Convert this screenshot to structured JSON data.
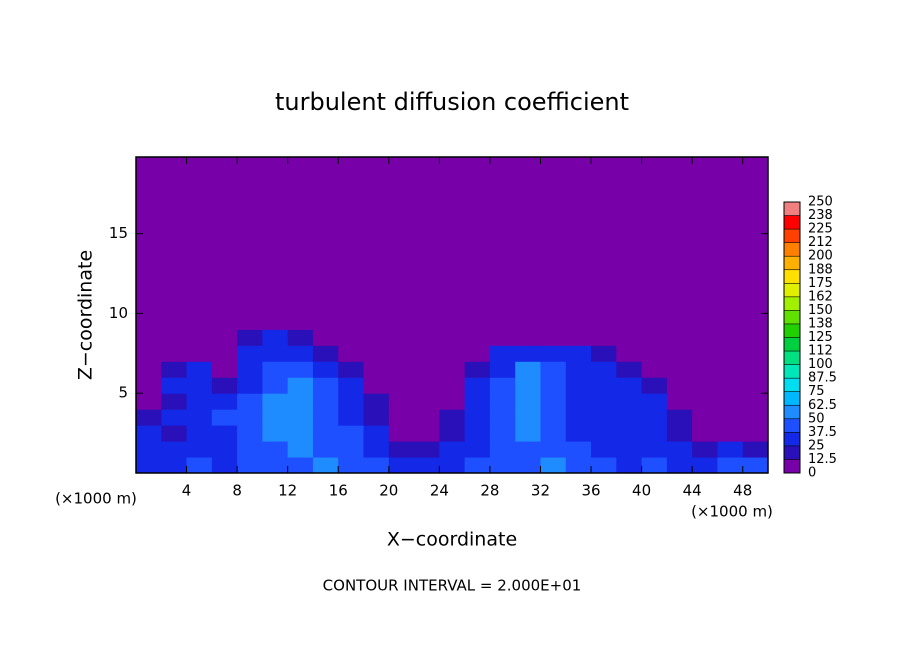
{
  "chart_data": {
    "type": "heatmap",
    "title": "turbulent diffusion coefficient",
    "x_label": "X−coordinate",
    "y_label": "Z−coordinate",
    "x_unit": "(×1000 m)",
    "y_unit": "(×1000 m)",
    "note": "CONTOUR INTERVAL = 2.000E+01",
    "xlim": [
      0,
      50
    ],
    "ylim": [
      0,
      19.8
    ],
    "xticks": [
      4,
      8,
      12,
      16,
      20,
      24,
      28,
      32,
      36,
      40,
      44,
      48
    ],
    "yticks": [
      5,
      10,
      15
    ],
    "x": [
      1,
      3,
      5,
      7,
      9,
      11,
      13,
      15,
      17,
      19,
      21,
      23,
      25,
      27,
      29,
      31,
      33,
      35,
      37,
      39,
      41,
      43,
      45,
      47,
      49
    ],
    "y": [
      0.5,
      1.5,
      2.5,
      3.5,
      4.5,
      5.5,
      6.5,
      7.5,
      8.5,
      9.5
    ],
    "z": [
      [
        35,
        30,
        40,
        35,
        45,
        40,
        45,
        50,
        45,
        40,
        30,
        35,
        30,
        40,
        45,
        40,
        50,
        45,
        40,
        35,
        40,
        35,
        30,
        40,
        40
      ],
      [
        30,
        25,
        35,
        30,
        40,
        45,
        50,
        45,
        40,
        35,
        20,
        15,
        25,
        35,
        40,
        45,
        45,
        40,
        35,
        35,
        30,
        25,
        20,
        25,
        20
      ],
      [
        25,
        20,
        30,
        35,
        40,
        50,
        55,
        45,
        40,
        30,
        10,
        5,
        20,
        35,
        45,
        50,
        40,
        35,
        30,
        30,
        25,
        20,
        10,
        5,
        5
      ],
      [
        15,
        25,
        30,
        40,
        45,
        55,
        50,
        45,
        35,
        20,
        5,
        5,
        15,
        30,
        40,
        55,
        45,
        35,
        30,
        35,
        30,
        15,
        5,
        5,
        5
      ],
      [
        10,
        20,
        35,
        30,
        40,
        50,
        50,
        45,
        35,
        15,
        5,
        5,
        10,
        30,
        40,
        50,
        45,
        35,
        30,
        30,
        25,
        10,
        5,
        5,
        5
      ],
      [
        5,
        25,
        30,
        15,
        35,
        45,
        50,
        40,
        30,
        10,
        0,
        0,
        5,
        25,
        40,
        55,
        45,
        35,
        30,
        25,
        15,
        5,
        0,
        0,
        0
      ],
      [
        0,
        15,
        25,
        10,
        30,
        40,
        45,
        35,
        15,
        0,
        0,
        0,
        0,
        20,
        35,
        60,
        45,
        35,
        30,
        20,
        10,
        0,
        0,
        0,
        0
      ],
      [
        0,
        0,
        0,
        5,
        25,
        35,
        30,
        20,
        5,
        0,
        0,
        0,
        0,
        10,
        25,
        35,
        30,
        25,
        20,
        10,
        5,
        0,
        0,
        0,
        0
      ],
      [
        0,
        0,
        0,
        0,
        15,
        25,
        20,
        5,
        0,
        0,
        0,
        0,
        0,
        0,
        0,
        0,
        0,
        0,
        0,
        0,
        0,
        0,
        0,
        0,
        0
      ],
      [
        0,
        0,
        0,
        0,
        5,
        10,
        5,
        0,
        0,
        0,
        0,
        0,
        0,
        0,
        0,
        0,
        0,
        0,
        0,
        0,
        0,
        0,
        0,
        0,
        0
      ]
    ],
    "colorbar": {
      "levels": [
        0,
        12.5,
        25,
        37.5,
        50,
        62.5,
        75,
        87.5,
        100,
        112,
        125,
        138,
        150,
        162,
        175,
        188,
        200,
        212,
        225,
        238,
        250
      ],
      "colors": [
        "#7800a8",
        "#2a10b8",
        "#1428e8",
        "#1e50ff",
        "#1e8cff",
        "#00b8ff",
        "#00dcf0",
        "#00e8b8",
        "#00e080",
        "#00d040",
        "#20d000",
        "#60e000",
        "#a0f000",
        "#e0f000",
        "#ffe000",
        "#ffb000",
        "#ff8000",
        "#ff4000",
        "#ff0000",
        "#f08080"
      ]
    }
  }
}
